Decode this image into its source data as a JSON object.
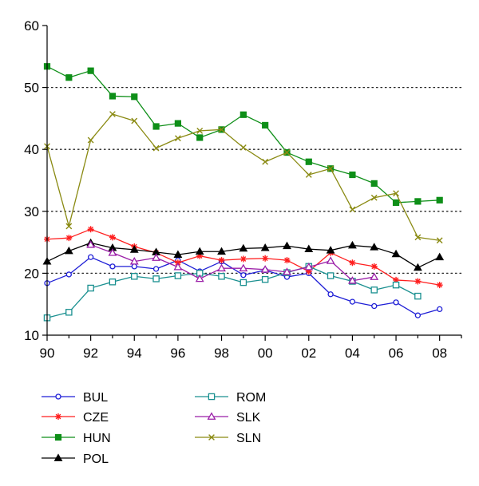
{
  "chart_data": {
    "type": "line",
    "title": "",
    "xlabel": "",
    "ylabel": "",
    "xlim": [
      1990,
      2009
    ],
    "ylim": [
      10,
      60
    ],
    "x_ticks": [
      1990,
      1992,
      1994,
      1996,
      1998,
      2000,
      2002,
      2004,
      2006,
      2008
    ],
    "x_tick_labels": [
      "90",
      "92",
      "94",
      "96",
      "98",
      "00",
      "02",
      "04",
      "06",
      "08"
    ],
    "y_ticks": [
      10,
      20,
      30,
      40,
      50,
      60
    ],
    "y_tick_labels": [
      "10",
      "20",
      "30",
      "40",
      "50",
      "60"
    ],
    "grid": "horizontal dotted",
    "legend_position": "bottom",
    "x": [
      1990,
      1991,
      1992,
      1993,
      1994,
      1995,
      1996,
      1997,
      1998,
      1999,
      2000,
      2001,
      2002,
      2003,
      2004,
      2005,
      2006,
      2007,
      2008
    ],
    "series": [
      {
        "name": "BUL",
        "color": "#1f1fd6",
        "marker": "circle",
        "values": [
          18.4,
          19.8,
          22.6,
          21.1,
          21.1,
          20.7,
          22.1,
          20.3,
          21.9,
          19.7,
          20.5,
          19.4,
          20.0,
          16.6,
          15.4,
          14.7,
          15.3,
          13.2,
          14.2
        ]
      },
      {
        "name": "CZE",
        "color": "#ff1f1f",
        "marker": "star",
        "values": [
          25.5,
          25.7,
          27.1,
          25.8,
          24.3,
          23.3,
          21.7,
          22.8,
          22.1,
          22.3,
          22.4,
          22.1,
          20.3,
          23.3,
          21.7,
          21.1,
          18.9,
          18.7,
          18.1
        ]
      },
      {
        "name": "HUN",
        "color": "#0e8f18",
        "marker": "square-filled",
        "values": [
          53.4,
          51.6,
          52.7,
          48.6,
          48.5,
          43.7,
          44.2,
          41.9,
          43.2,
          45.6,
          43.9,
          39.5,
          38.0,
          36.9,
          35.9,
          34.5,
          31.4,
          31.6,
          31.8
        ]
      },
      {
        "name": "POL",
        "color": "#000000",
        "marker": "triangle-filled",
        "values": [
          21.9,
          23.6,
          24.9,
          24.1,
          23.8,
          23.4,
          23.0,
          23.5,
          23.5,
          24.0,
          24.1,
          24.4,
          23.9,
          23.7,
          24.5,
          24.2,
          23.1,
          20.9,
          22.6
        ]
      },
      {
        "name": "ROM",
        "color": "#1a9090",
        "marker": "square-open",
        "x": [
          1990,
          1991,
          1992,
          1993,
          1994,
          1995,
          1996,
          1997,
          1998,
          1999,
          2000,
          2001,
          2002,
          2003,
          2004,
          2005,
          2006,
          2007
        ],
        "values": [
          12.8,
          13.7,
          17.6,
          18.6,
          19.5,
          19.1,
          19.6,
          20.0,
          19.5,
          18.5,
          19.0,
          20.1,
          21.1,
          19.6,
          18.7,
          17.3,
          18.1,
          16.3
        ]
      },
      {
        "name": "SLK",
        "color": "#9b1fa8",
        "marker": "triangle-open",
        "x": [
          1992,
          1993,
          1994,
          1995,
          1996,
          1997,
          1998,
          1999,
          2000,
          2001,
          2002,
          2003,
          2004,
          2005
        ],
        "values": [
          24.6,
          23.3,
          21.9,
          22.5,
          21.0,
          19.1,
          20.8,
          20.8,
          20.6,
          20.2,
          21.0,
          22.0,
          18.8,
          19.4
        ]
      },
      {
        "name": "SLN",
        "color": "#8a8a12",
        "marker": "x",
        "values": [
          40.5,
          27.6,
          41.5,
          45.7,
          44.6,
          40.2,
          41.8,
          43.0,
          43.2,
          40.3,
          38.0,
          39.5,
          35.9,
          36.9,
          30.3,
          32.2,
          32.9,
          25.8,
          25.3
        ]
      }
    ],
    "legend_columns": [
      [
        "BUL",
        "CZE",
        "HUN",
        "POL"
      ],
      [
        "ROM",
        "SLK",
        "SLN"
      ]
    ]
  }
}
